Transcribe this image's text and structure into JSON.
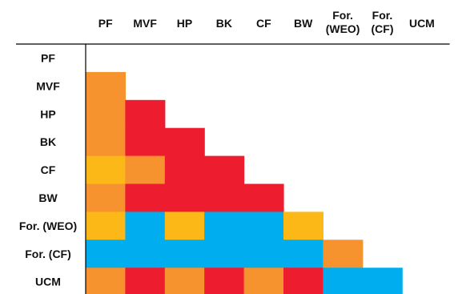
{
  "chart_data": {
    "type": "heatmap",
    "shape": "lower-triangular",
    "title": "",
    "xlabel": "",
    "ylabel": "",
    "grid": false,
    "legend": "none",
    "row_labels": [
      "PF",
      "MVF",
      "HP",
      "BK",
      "CF",
      "BW",
      "For. (WEO)",
      "For. (CF)",
      "UCM"
    ],
    "column_labels": [
      [
        "PF"
      ],
      [
        "MVF"
      ],
      [
        "HP"
      ],
      [
        "BK"
      ],
      [
        "CF"
      ],
      [
        "BW"
      ],
      [
        "For.",
        "(WEO)"
      ],
      [
        "For.",
        "(CF)"
      ],
      [
        "UCM"
      ]
    ],
    "colors": {
      "orange": "#f7932f",
      "red": "#ed1c2e",
      "yellow": "#fbb817",
      "blue": "#00aeef"
    },
    "cells": [
      [],
      [
        "orange"
      ],
      [
        "orange",
        "red"
      ],
      [
        "orange",
        "red",
        "red"
      ],
      [
        "yellow",
        "orange",
        "red",
        "red"
      ],
      [
        "orange",
        "red",
        "red",
        "red",
        "red"
      ],
      [
        "yellow",
        "blue",
        "yellow",
        "blue",
        "blue",
        "yellow"
      ],
      [
        "blue",
        "blue",
        "blue",
        "blue",
        "blue",
        "blue",
        "orange"
      ],
      [
        "orange",
        "red",
        "orange",
        "red",
        "orange",
        "red",
        "blue",
        "blue"
      ]
    ]
  }
}
